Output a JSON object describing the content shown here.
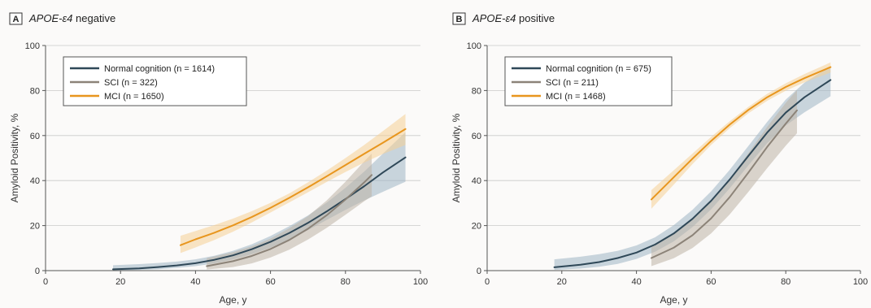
{
  "colors": {
    "normal": "#2f4858",
    "sci": "#8c8378",
    "mci": "#e8961e",
    "normal_band": "#9fb4c4",
    "sci_band": "#bdb3a6",
    "mci_band": "#f6cf95"
  },
  "chart_data": [
    {
      "type": "line",
      "panel_letter": "A",
      "title_gene": "APOE-ε4",
      "title_rest": " negative",
      "xlabel": "Age, y",
      "ylabel": "Amyloid Positivity, %",
      "xlim": [
        0,
        100
      ],
      "ylim": [
        0,
        100
      ],
      "xticks": [
        0,
        20,
        40,
        60,
        80,
        100
      ],
      "yticks": [
        0,
        20,
        40,
        60,
        80,
        100
      ],
      "grid": true,
      "legend_position": "top-left",
      "series": [
        {
          "key": "normal",
          "name": "Normal cognition (n = 1614)",
          "x": [
            18,
            25,
            30,
            35,
            40,
            45,
            50,
            55,
            60,
            65,
            70,
            75,
            80,
            85,
            90,
            96
          ],
          "y": [
            0.6,
            1.0,
            1.6,
            2.3,
            3.3,
            4.8,
            6.8,
            9.5,
            12.8,
            16.7,
            21.2,
            26.3,
            31.8,
            37.5,
            43.6,
            50.3
          ],
          "ci_lower": [
            0.1,
            0.3,
            0.6,
            1.2,
            2.0,
            3.2,
            5.0,
            7.3,
            10.2,
            13.8,
            18.0,
            22.5,
            27.0,
            31.2,
            35.0,
            39.5
          ],
          "ci_upper": [
            2.4,
            2.9,
            3.4,
            4.0,
            5.0,
            6.6,
            8.8,
            11.7,
            15.4,
            19.7,
            24.5,
            30.2,
            36.8,
            44.0,
            52.0,
            61.5
          ]
        },
        {
          "key": "sci",
          "name": "SCI (n = 322)",
          "x": [
            43,
            50,
            55,
            60,
            65,
            70,
            75,
            80,
            85,
            87
          ],
          "y": [
            2.0,
            4.2,
            6.5,
            9.6,
            13.6,
            18.6,
            24.6,
            31.6,
            39.2,
            42.5
          ],
          "ci_lower": [
            0.5,
            1.6,
            3.2,
            5.8,
            9.3,
            13.8,
            19.0,
            24.8,
            30.8,
            33.0
          ],
          "ci_upper": [
            5.5,
            8.2,
            10.8,
            14.2,
            18.8,
            24.2,
            31.2,
            39.5,
            48.5,
            52.0
          ]
        },
        {
          "key": "mci",
          "name": "MCI (n = 1650)",
          "x": [
            36,
            40,
            45,
            50,
            55,
            60,
            65,
            70,
            75,
            80,
            85,
            90,
            96
          ],
          "y": [
            11.3,
            13.9,
            16.8,
            20.1,
            23.8,
            27.9,
            32.3,
            37.0,
            41.9,
            46.9,
            51.9,
            56.8,
            62.9
          ],
          "ci_lower": [
            7.8,
            10.3,
            13.6,
            17.3,
            21.4,
            25.8,
            30.3,
            34.8,
            39.4,
            43.8,
            48.0,
            51.8,
            55.8
          ],
          "ci_upper": [
            15.5,
            17.6,
            20.2,
            23.1,
            26.4,
            30.1,
            34.3,
            39.2,
            44.4,
            50.0,
            55.8,
            62.0,
            69.6
          ]
        }
      ]
    },
    {
      "type": "line",
      "panel_letter": "B",
      "title_gene": "APOE-ε4",
      "title_rest": " positive",
      "xlabel": "Age, y",
      "ylabel": "Amyloid Positivity, %",
      "xlim": [
        0,
        100
      ],
      "ylim": [
        0,
        100
      ],
      "xticks": [
        0,
        20,
        40,
        60,
        80,
        100
      ],
      "yticks": [
        0,
        20,
        40,
        60,
        80,
        100
      ],
      "grid": true,
      "legend_position": "top-left",
      "series": [
        {
          "key": "normal",
          "name": "Normal cognition (n = 675)",
          "x": [
            18,
            25,
            30,
            35,
            40,
            45,
            50,
            55,
            60,
            65,
            70,
            75,
            80,
            85,
            92
          ],
          "y": [
            1.5,
            2.6,
            3.8,
            5.6,
            8.0,
            11.6,
            16.5,
            23.0,
            31.0,
            40.5,
            51.0,
            61.3,
            70.2,
            77.0,
            84.7
          ],
          "ci_lower": [
            0.3,
            0.9,
            1.7,
            3.0,
            5.2,
            8.4,
            13.0,
            19.3,
            27.2,
            36.6,
            46.8,
            56.6,
            64.5,
            70.3,
            77.5
          ],
          "ci_upper": [
            5.0,
            6.2,
            7.3,
            8.8,
            11.2,
            14.8,
            20.2,
            27.0,
            35.2,
            44.8,
            55.4,
            66.0,
            76.0,
            83.5,
            90.8
          ]
        },
        {
          "key": "sci",
          "name": "SCI (n = 211)",
          "x": [
            44,
            50,
            55,
            60,
            65,
            70,
            75,
            80,
            83
          ],
          "y": [
            5.6,
            10.2,
            15.7,
            23.2,
            32.7,
            43.6,
            54.9,
            65.3,
            71.2
          ],
          "ci_lower": [
            2.0,
            5.5,
            10.0,
            16.5,
            25.0,
            35.0,
            45.5,
            55.5,
            61.0
          ],
          "ci_upper": [
            11.0,
            16.8,
            22.8,
            30.8,
            40.8,
            52.2,
            63.8,
            74.5,
            80.2
          ]
        },
        {
          "key": "mci",
          "name": "MCI (n = 1468)",
          "x": [
            44,
            50,
            55,
            60,
            65,
            70,
            75,
            80,
            85,
            92
          ],
          "y": [
            31.6,
            41.5,
            49.7,
            57.6,
            64.9,
            71.4,
            77.0,
            81.6,
            85.5,
            90.4
          ],
          "ci_lower": [
            27.5,
            38.2,
            47.3,
            55.8,
            63.3,
            69.9,
            75.4,
            79.9,
            83.6,
            88.0
          ],
          "ci_upper": [
            35.8,
            44.6,
            52.0,
            59.4,
            66.4,
            72.8,
            78.5,
            83.2,
            87.3,
            92.5
          ]
        }
      ]
    }
  ]
}
